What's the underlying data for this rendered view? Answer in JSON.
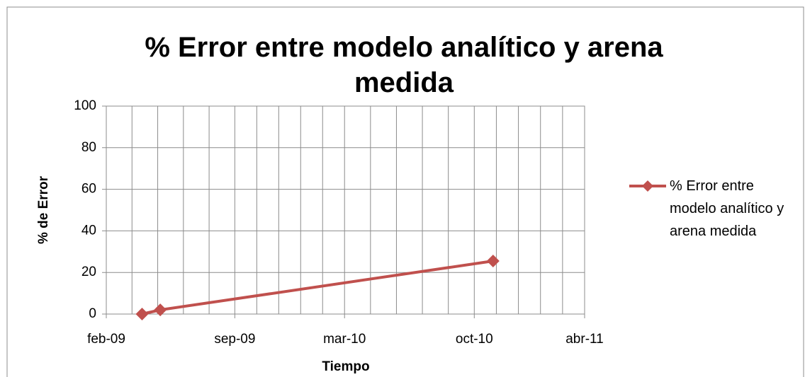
{
  "chart_data": {
    "type": "line",
    "title": "% Error entre modelo analítico y arena medida",
    "x_label": "Tiempo",
    "y_label": "% de Error",
    "x": [
      "2009-04",
      "2009-05",
      "2010-11"
    ],
    "series": [
      {
        "name": "% Error entre modelo analítico y arena medida",
        "color": "#c0504d",
        "values": [
          0,
          2,
          25.5
        ]
      }
    ],
    "xlim": [
      "2009-02",
      "2011-04"
    ],
    "xticks": [
      {
        "value": "2009-02",
        "label": "feb-09"
      },
      {
        "value": "2009-09",
        "label": "sep-09"
      },
      {
        "value": "2010-03",
        "label": "mar-10"
      },
      {
        "value": "2010-10",
        "label": "oct-10"
      },
      {
        "value": "2011-04",
        "label": "abr-11"
      }
    ],
    "ylim": [
      0,
      100
    ],
    "yticks": [
      0,
      20,
      40,
      60,
      80,
      100
    ],
    "grid": true,
    "legend": "right"
  }
}
